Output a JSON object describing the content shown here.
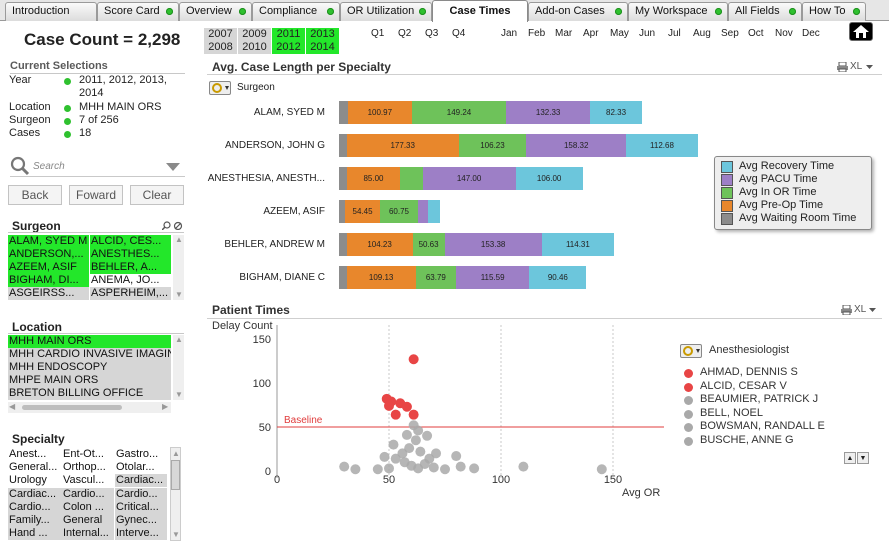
{
  "tabs": [
    {
      "label": "Introduction",
      "dot": false
    },
    {
      "label": "Score Card",
      "dot": true
    },
    {
      "label": "Overview",
      "dot": true
    },
    {
      "label": "Compliance",
      "dot": true
    },
    {
      "label": "OR Utilization",
      "dot": true
    },
    {
      "label": "Case Times",
      "dot": false
    },
    {
      "label": "Add-on Cases",
      "dot": true
    },
    {
      "label": "My Workspace",
      "dot": true
    },
    {
      "label": "All Fields",
      "dot": true
    },
    {
      "label": "How To",
      "dot": true
    }
  ],
  "case_count": "Case Count = 2,298",
  "current_selections": {
    "title": "Current Selections",
    "rows": [
      {
        "label": "Year",
        "value": "2011, 2012, 2013, 2014"
      },
      {
        "label": "Location",
        "value": "MHH MAIN ORS"
      },
      {
        "label": "Surgeon",
        "value": "7 of 256"
      },
      {
        "label": "Cases",
        "value": "18"
      }
    ]
  },
  "search": {
    "placeholder": "Search"
  },
  "buttons": {
    "back": "Back",
    "forward": "Foward",
    "clear": "Clear"
  },
  "surgeon_list": {
    "title": "Surgeon",
    "rows": [
      [
        "ALAM, SYED M",
        "ALCID, CES..."
      ],
      [
        "ANDERSON,...",
        "ANESTHES..."
      ],
      [
        "AZEEM, ASIF",
        "BEHLER, A..."
      ],
      [
        "BIGHAM, DI...",
        "ANEMA, JO..."
      ],
      [
        "ASGEIRSS...",
        "ASPERHEIM,..."
      ]
    ]
  },
  "location_list": {
    "title": "Location",
    "items": [
      "MHH MAIN ORS",
      "MHH CARDIO INVASIVE IMAGING",
      "MHH ENDOSCOPY",
      "MHPE MAIN ORS",
      "BRETON BILLING OFFICE"
    ]
  },
  "specialty_list": {
    "title": "Specialty",
    "rows": [
      [
        "Anest...",
        "Ent-Ot...",
        "Gastro..."
      ],
      [
        "General...",
        "Orthop...",
        "Otolar..."
      ],
      [
        "Urology",
        "Vascul...",
        "Cardiac..."
      ],
      [
        "Cardiac...",
        "Cardio...",
        "Cardio..."
      ],
      [
        "Cardio...",
        "Colon ...",
        "Critical..."
      ],
      [
        "Family...",
        "General",
        "Gynec..."
      ],
      [
        "Hand ...",
        "Internal...",
        "Interve..."
      ]
    ]
  },
  "years": [
    {
      "label": "2007",
      "selected": false
    },
    {
      "label": "2009",
      "selected": false
    },
    {
      "label": "2011",
      "selected": true
    },
    {
      "label": "2013",
      "selected": true
    },
    {
      "label": "2008",
      "selected": false
    },
    {
      "label": "2010",
      "selected": false
    },
    {
      "label": "2012",
      "selected": true
    },
    {
      "label": "2014",
      "selected": true
    }
  ],
  "quarters": [
    "Q1",
    "Q2",
    "Q3",
    "Q4"
  ],
  "months": [
    "Jan",
    "Feb",
    "Mar",
    "Apr",
    "May",
    "Jun",
    "Jul",
    "Aug",
    "Sep",
    "Oct",
    "Nov",
    "Dec"
  ],
  "chart_title": "Avg. Case Length per Specialty",
  "xl_label": "XL",
  "dimension_label": "Surgeon",
  "colors": {
    "waiting": "#8c8c8c",
    "preop": "#e8872c",
    "inor": "#6ec25a",
    "pacu": "#9d7fc6",
    "recovery": "#6cc6dc",
    "selected": "#23e72a",
    "alt": "#d6d6d6",
    "red_dot": "#e84545",
    "gray_dot": "#a9a9a9",
    "baseline": "#e03c3c"
  },
  "legend": [
    "Avg Recovery Time",
    "Avg PACU Time",
    "Avg In OR Time",
    "Avg Pre-Op Time",
    "Avg Waiting Room Time"
  ],
  "chart_data": [
    {
      "type": "bar",
      "title": "Avg. Case Length per Specialty",
      "orientation": "horizontal-stacked",
      "categories": [
        "ALAM, SYED M",
        "ANDERSON, JOHN G",
        "ANESTHESIA, ANESTH...",
        "AZEEM, ASIF",
        "BEHLER, ANDREW M",
        "BIGHAM, DIANE C"
      ],
      "series": [
        {
          "name": "Avg Waiting Room Time",
          "values": [
            14,
            12,
            12,
            10,
            12,
            12
          ],
          "labels": [
            "",
            "",
            "",
            "",
            "",
            ""
          ]
        },
        {
          "name": "Avg Pre-Op Time",
          "values": [
            100.97,
            177.33,
            85.0,
            54.45,
            104.23,
            109.13
          ],
          "labels": [
            "100.97",
            "177.33",
            "85.00",
            "54.45",
            "104.23",
            "109.13"
          ]
        },
        {
          "name": "Avg In OR Time",
          "values": [
            149.24,
            106.23,
            35,
            60.75,
            50.63,
            63.79
          ],
          "labels": [
            "149.24",
            "106.23",
            "",
            "60.75",
            "50.63",
            "63.79"
          ]
        },
        {
          "name": "Avg PACU Time",
          "values": [
            132.33,
            158.32,
            147.0,
            15,
            153.38,
            115.59
          ],
          "labels": [
            "132.33",
            "158.32",
            "147.00",
            "",
            "153.38",
            "115.59"
          ]
        },
        {
          "name": "Avg Recovery Time",
          "values": [
            82.33,
            112.68,
            106.0,
            20,
            114.31,
            90.46
          ],
          "labels": [
            "82.33",
            "112.68",
            "106.00",
            "",
            "114.31",
            "90.46"
          ]
        }
      ],
      "legend_position": "right"
    },
    {
      "type": "scatter",
      "title": "Patient Times",
      "xlabel": "Avg OR",
      "ylabel": "Delay Count",
      "xlim": [
        0,
        170
      ],
      "ylim": [
        0,
        150
      ],
      "xticks": [
        0,
        50,
        100,
        150
      ],
      "yticks": [
        0,
        50,
        100,
        150
      ],
      "baseline": {
        "label": "Baseline",
        "y": 50
      },
      "series": [
        {
          "name": "highlighted",
          "color": "#e84545",
          "points": [
            [
              61,
              127
            ],
            [
              49,
              82
            ],
            [
              51,
              79
            ],
            [
              55,
              77
            ],
            [
              58,
              73
            ],
            [
              50,
              74
            ],
            [
              53,
              64
            ],
            [
              61,
              64
            ]
          ]
        },
        {
          "name": "other",
          "color": "#a9a9a9",
          "points": [
            [
              61,
              52
            ],
            [
              63,
              46
            ],
            [
              67,
              40
            ],
            [
              58,
              41
            ],
            [
              62,
              35
            ],
            [
              52,
              30
            ],
            [
              59,
              26
            ],
            [
              64,
              22
            ],
            [
              71,
              20
            ],
            [
              80,
              17
            ],
            [
              48,
              16
            ],
            [
              53,
              14
            ],
            [
              57,
              10
            ],
            [
              60,
              6
            ],
            [
              63,
              3
            ],
            [
              66,
              8
            ],
            [
              70,
              4
            ],
            [
              75,
              2
            ],
            [
              82,
              5
            ],
            [
              88,
              3
            ],
            [
              30,
              5
            ],
            [
              35,
              2
            ],
            [
              45,
              2
            ],
            [
              50,
              3
            ],
            [
              110,
              5
            ],
            [
              145,
              2
            ],
            [
              68,
              14
            ],
            [
              56,
              20
            ]
          ]
        }
      ],
      "legend_title": "Anesthesiologist",
      "legend": [
        {
          "name": "AHMAD, DENNIS S",
          "color": "#e84545"
        },
        {
          "name": "ALCID, CESAR V",
          "color": "#e84545"
        },
        {
          "name": "BEAUMIER, PATRICK J",
          "color": "#a9a9a9"
        },
        {
          "name": "BELL, NOEL",
          "color": "#a9a9a9"
        },
        {
          "name": "BOWSMAN, RANDALL E",
          "color": "#a9a9a9"
        },
        {
          "name": "BUSCHE, ANNE G",
          "color": "#a9a9a9"
        }
      ]
    }
  ]
}
